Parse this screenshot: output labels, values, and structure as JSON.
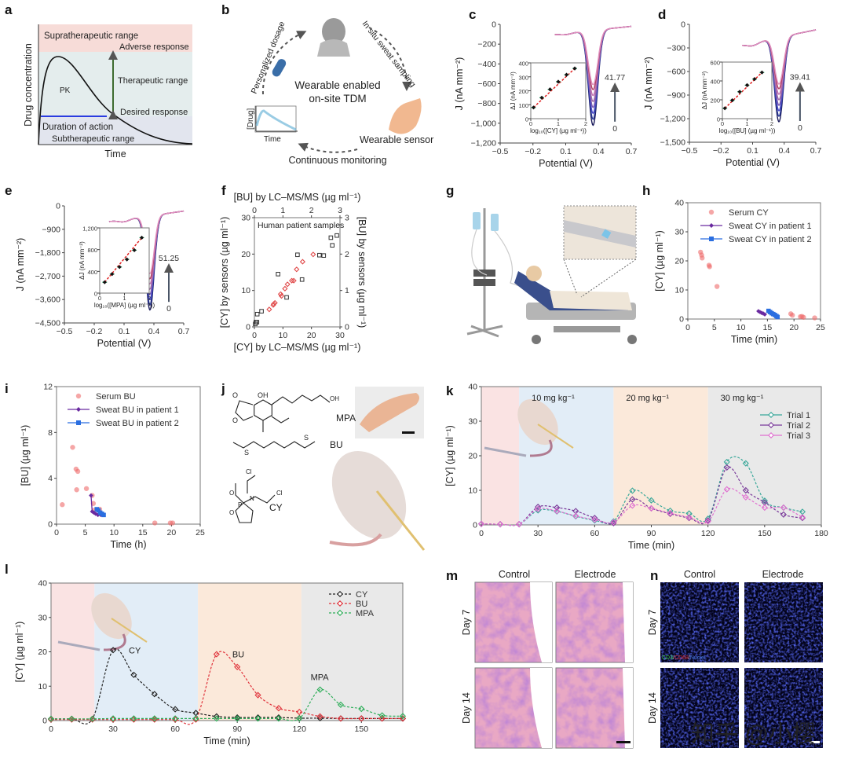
{
  "panel_letters": {
    "a": "a",
    "b": "b",
    "c": "c",
    "d": "d",
    "e": "e",
    "f": "f",
    "g": "g",
    "h": "h",
    "i": "i",
    "j": "j",
    "k": "k",
    "l": "l",
    "m": "m",
    "n": "n"
  },
  "colors": {
    "red": "#e0434b",
    "green": "#4f8a3c",
    "blue": "#2a3ce0",
    "brown": "#b0704f",
    "teal": "#3aa89a",
    "purple": "#7a3a9a",
    "pink": "#e070d0",
    "black": "#222222",
    "mpa": "#2fae5a"
  },
  "panel_a": {
    "supra": "Supratherapeutic range",
    "adverse": "Adverse response",
    "therapeutic": "Therapeutic range",
    "desired": "Desired response",
    "pk": "PK",
    "duration": "Duration of action",
    "sub": "Subtherapeutic range",
    "ylabel": "Drug concentration",
    "xlabel": "Time"
  },
  "panel_b": {
    "center1": "Wearable enabled",
    "center2": "on-site TDM",
    "left": "Personalized dosage",
    "right": "In situ sweat sampling",
    "sensor": "Wearable sensor",
    "bottom": "Continuous monitoring",
    "mini_y": "[Drug]",
    "mini_x": "Time"
  },
  "panel_g": {
    "scene": "patient-bed-iv-illustration"
  },
  "panel_j": {
    "mpa": "MPA",
    "bu": "BU",
    "cy": "CY",
    "atoms": {
      "oh1": "OH",
      "oh2": "OH",
      "o1": "O",
      "o2": "O",
      "o3": "O",
      "o4": "O",
      "s1": "S",
      "s2": "S",
      "cl1": "Cl",
      "cl2": "Cl",
      "n": "N",
      "p": "P",
      "o5": "O",
      "o6": "O"
    }
  },
  "panel_m": {
    "col1": "Control",
    "col2": "Electrode",
    "row1": "Day 7",
    "row2": "Day 14"
  },
  "panel_n": {
    "col1": "Control",
    "col2": "Electrode",
    "row1": "Day 7",
    "row2": "Day 14",
    "stain_cd3": "CD3",
    "stain_sep1": "/",
    "stain_cd68": "CD68",
    "stain_sep2": "/",
    "stain_nuclei": "Nuclei"
  },
  "watermark": "知乎 @小樱",
  "chart_data": [
    {
      "id": "c",
      "type": "line",
      "xlabel": "Potential (V)",
      "ylabel": "J (nA mm⁻²)",
      "xlim": [
        -0.5,
        0.7
      ],
      "ylim": [
        -1200,
        0
      ],
      "xticks": [
        "−0.5",
        "−0.2",
        "0.1",
        "0.4",
        "0.7"
      ],
      "yticks": [
        "0",
        "−200",
        "−400",
        "−600",
        "−800",
        "−1,000",
        "−1,200"
      ],
      "curve_start": [
        0.0,
        -100
      ],
      "curve_end": [
        0.7,
        -20
      ],
      "peak_potential": 0.35,
      "peaks": [
        -1020,
        -960,
        -900,
        -840,
        -780,
        -720,
        -660,
        -610
      ],
      "annotation_top": "41.77",
      "annotation_bottom": "0",
      "inset": {
        "xlabel": "log₁₀([CY] (µg ml⁻¹))",
        "ylabel": "ΔJ (nA mm⁻²)",
        "xlim": [
          0,
          2
        ],
        "ylim": [
          0,
          400
        ],
        "xticks": [
          "0",
          "1",
          "2"
        ],
        "yticks": [
          "0",
          "100",
          "200",
          "300",
          "400"
        ],
        "x": [
          0.1,
          0.4,
          0.7,
          1.0,
          1.3,
          1.6
        ],
        "y": [
          80,
          150,
          210,
          265,
          315,
          360
        ]
      }
    },
    {
      "id": "d",
      "type": "line",
      "xlabel": "Potential (V)",
      "ylabel": "J (nA mm⁻²)",
      "xlim": [
        -0.5,
        0.7
      ],
      "ylim": [
        -1500,
        0
      ],
      "xticks": [
        "−0.5",
        "−0.2",
        "0.1",
        "0.4",
        "0.7"
      ],
      "yticks": [
        "0",
        "−300",
        "−600",
        "−900",
        "−1,200",
        "−1,500"
      ],
      "curve_start": [
        0.0,
        -260
      ],
      "curve_end": [
        0.7,
        -70
      ],
      "peak_potential": 0.35,
      "peaks": [
        -1240,
        -1170,
        -1100,
        -1030,
        -960,
        -890,
        -820,
        -760
      ],
      "annotation_top": "39.41",
      "annotation_bottom": "0",
      "inset": {
        "xlabel": "log₁₀([BU] (µg ml⁻¹))",
        "ylabel": "ΔJ (nA mm⁻²)",
        "xlim": [
          0,
          2
        ],
        "ylim": [
          0,
          600
        ],
        "xticks": [
          "0",
          "1",
          "2"
        ],
        "yticks": [
          "0",
          "200",
          "400",
          "600"
        ],
        "x": [
          0.1,
          0.4,
          0.7,
          1.0,
          1.3,
          1.6
        ],
        "y": [
          110,
          195,
          285,
          355,
          420,
          490
        ]
      }
    },
    {
      "id": "e",
      "type": "line",
      "xlabel": "Potential (V)",
      "ylabel": "J (nA mm⁻²)",
      "xlim": [
        -0.5,
        0.7
      ],
      "ylim": [
        -4500,
        0
      ],
      "xticks": [
        "−0.5",
        "−0.2",
        "0.1",
        "0.4",
        "0.7"
      ],
      "yticks": [
        "0",
        "−900",
        "−1,800",
        "−2,700",
        "−3,600",
        "−4,500"
      ],
      "curve_start": [
        -0.05,
        -600
      ],
      "curve_end": [
        0.7,
        -200
      ],
      "peak_potential": 0.36,
      "peaks": [
        -4000,
        -3800,
        -3600,
        -3400,
        -3200,
        -3000,
        -2800,
        -2600
      ],
      "annotation_top": "51.25",
      "annotation_bottom": "0",
      "inset": {
        "xlabel": "log₁₀([MPA] (µg ml⁻¹))",
        "ylabel": "ΔJ (nA mm⁻²)",
        "xlim": [
          0,
          2
        ],
        "ylim": [
          0,
          1200
        ],
        "xticks": [
          "0",
          "1",
          "2"
        ],
        "yticks": [
          "0",
          "400",
          "800",
          "1,200"
        ],
        "x": [
          0.2,
          0.5,
          0.8,
          1.1,
          1.4,
          1.7
        ],
        "y": [
          200,
          350,
          480,
          620,
          790,
          1020
        ]
      }
    },
    {
      "id": "f",
      "type": "scatter",
      "title": "Human patient samples",
      "xlabel": "[CY] by LC–MS/MS (µg ml⁻¹)",
      "ylabel": "[CY] by sensors (µg ml⁻¹)",
      "x2label": "[BU] by LC–MS/MS (µg ml⁻¹)",
      "y2label": "[BU] by sensors (µg ml⁻¹)",
      "xlim": [
        0,
        30
      ],
      "ylim": [
        0,
        30
      ],
      "x2lim": [
        0,
        3
      ],
      "y2lim": [
        0,
        3
      ],
      "xticks": [
        "0",
        "10",
        "20",
        "30"
      ],
      "yticks": [
        "0",
        "10",
        "20",
        "30"
      ],
      "x2ticks": [
        "0",
        "1",
        "2",
        "3"
      ],
      "y2ticks": [
        "0",
        "1",
        "2",
        "3"
      ],
      "cy_points": [
        [
          0.3,
          0.8
        ],
        [
          0.5,
          1.3
        ],
        [
          0.9,
          1.3
        ],
        [
          1.0,
          3.5
        ],
        [
          2.5,
          4.3
        ],
        [
          8.3,
          14.5
        ],
        [
          11.3,
          8.1
        ],
        [
          15.1,
          19.8
        ],
        [
          16.7,
          13.0
        ],
        [
          22.8,
          19.7
        ],
        [
          24.3,
          19.6
        ],
        [
          26.8,
          24.5
        ],
        [
          27.3,
          22.4
        ],
        [
          28.9,
          25.1
        ]
      ],
      "bu_points": [
        [
          0.52,
          0.48
        ],
        [
          0.66,
          0.6
        ],
        [
          0.68,
          0.63
        ],
        [
          0.72,
          0.66
        ],
        [
          0.92,
          0.9
        ],
        [
          0.95,
          0.85
        ],
        [
          1.07,
          1.05
        ],
        [
          1.16,
          1.17
        ],
        [
          1.31,
          1.27
        ],
        [
          1.38,
          1.27
        ],
        [
          1.48,
          1.58
        ],
        [
          1.69,
          1.79
        ],
        [
          2.06,
          1.99
        ]
      ]
    },
    {
      "id": "h",
      "type": "scatter",
      "xlabel": "Time (min)",
      "ylabel": "[CY] (µg ml⁻¹)",
      "xlim": [
        0,
        25
      ],
      "ylim": [
        0,
        40
      ],
      "xticks": [
        "0",
        "5",
        "10",
        "15",
        "20",
        "25"
      ],
      "yticks": [
        "0",
        "10",
        "20",
        "30",
        "40"
      ],
      "legend": "top-right",
      "series": [
        {
          "name": "Serum CY",
          "marker": "circle",
          "color": "#ee6b6b",
          "points": [
            [
              2.4,
              23
            ],
            [
              2.6,
              22
            ],
            [
              2.7,
              21
            ],
            [
              4.0,
              18.5
            ],
            [
              4.1,
              18
            ],
            [
              5.5,
              11.2
            ],
            [
              19.4,
              1.8
            ],
            [
              19.7,
              1.3
            ],
            [
              21.2,
              0.8
            ],
            [
              21.5,
              0.9
            ],
            [
              21.8,
              0.6
            ],
            [
              23.9,
              0.4
            ]
          ]
        },
        {
          "name": "Sweat CY in patient 1",
          "marker": "diamond",
          "color": "#6a2aa0",
          "line": true,
          "points": [
            [
              13.3,
              2.7
            ],
            [
              13.6,
              2.4
            ],
            [
              13.9,
              2.1
            ],
            [
              14.2,
              1.9
            ],
            [
              14.5,
              1.6
            ]
          ]
        },
        {
          "name": "Sweat CY in patient 2",
          "marker": "square",
          "color": "#2a6ee0",
          "line": true,
          "points": [
            [
              15.2,
              2.8
            ],
            [
              15.5,
              2.4
            ],
            [
              15.8,
              2.0
            ],
            [
              16.1,
              1.7
            ],
            [
              16.4,
              1.4
            ],
            [
              16.7,
              1.0
            ],
            [
              16.9,
              0.7
            ]
          ]
        }
      ]
    },
    {
      "id": "i",
      "type": "scatter",
      "xlabel": "Time (h)",
      "ylabel": "[BU] (µg ml⁻¹)",
      "xlim": [
        0,
        25
      ],
      "ylim": [
        0,
        12
      ],
      "xticks": [
        "0",
        "5",
        "10",
        "15",
        "20",
        "25"
      ],
      "yticks": [
        "0",
        "4",
        "8",
        "12"
      ],
      "legend": "top-right",
      "series": [
        {
          "name": "Serum BU",
          "marker": "circle",
          "color": "#ee6b6b",
          "points": [
            [
              1.0,
              1.7
            ],
            [
              2.8,
              6.7
            ],
            [
              3.4,
              4.8
            ],
            [
              3.7,
              4.6
            ],
            [
              3.5,
              3.0
            ],
            [
              5.2,
              3.1
            ],
            [
              6.2,
              2.5
            ],
            [
              6.4,
              1.8
            ],
            [
              6.5,
              1.2
            ],
            [
              7.5,
              1.3
            ],
            [
              17.1,
              0.1
            ],
            [
              19.8,
              0.1
            ],
            [
              20.2,
              0.1
            ]
          ]
        },
        {
          "name": "Sweat BU in patient 1",
          "marker": "diamond",
          "color": "#6a2aa0",
          "line": true,
          "points": [
            [
              6.0,
              2.5
            ],
            [
              6.2,
              1.1
            ],
            [
              6.5,
              1.0
            ],
            [
              6.8,
              0.9
            ],
            [
              7.2,
              0.8
            ],
            [
              7.7,
              0.8
            ]
          ]
        },
        {
          "name": "Sweat BU in patient 2",
          "marker": "square",
          "color": "#2a6ee0",
          "line": true,
          "points": [
            [
              7.0,
              1.3
            ],
            [
              7.3,
              1.2
            ],
            [
              7.6,
              1.0
            ],
            [
              7.9,
              0.9
            ],
            [
              8.2,
              0.8
            ]
          ]
        }
      ]
    },
    {
      "id": "k",
      "type": "line",
      "xlabel": "Time (min)",
      "ylabel": "[CY] (µg ml⁻¹)",
      "xlim": [
        0,
        180
      ],
      "ylim": [
        0,
        40
      ],
      "xticks": [
        "0",
        "30",
        "60",
        "90",
        "120",
        "150",
        "180"
      ],
      "yticks": [
        "0",
        "10",
        "20",
        "30",
        "40"
      ],
      "legend": "top-right",
      "bands": [
        {
          "from": 0,
          "to": 20,
          "color": "#fae3e3",
          "label": ""
        },
        {
          "from": 20,
          "to": 70,
          "color": "#e2edf7",
          "label": "10 mg kg⁻¹"
        },
        {
          "from": 70,
          "to": 120,
          "color": "#fbe9da",
          "label": "20 mg kg⁻¹"
        },
        {
          "from": 120,
          "to": 180,
          "color": "#e9e9e9",
          "label": "30 mg kg⁻¹"
        }
      ],
      "x": [
        0,
        10,
        20,
        30,
        40,
        50,
        60,
        70,
        80,
        90,
        100,
        110,
        120,
        130,
        140,
        150,
        160,
        170
      ],
      "series": [
        {
          "name": "Trial 1",
          "color": "#3aa89a",
          "values": [
            0.3,
            0.2,
            0.2,
            4.2,
            3.9,
            2.5,
            1.3,
            1.0,
            9.9,
            7.1,
            4.1,
            3.3,
            1.8,
            18.2,
            17.8,
            7.0,
            5.0,
            3.8
          ]
        },
        {
          "name": "Trial 2",
          "color": "#7a3a9a",
          "values": [
            0.3,
            0.2,
            0.2,
            5.2,
            5.0,
            4.0,
            2.0,
            0.5,
            7.4,
            4.8,
            3.2,
            2.0,
            1.3,
            16.6,
            10.0,
            6.5,
            3.0,
            2.0
          ]
        },
        {
          "name": "Trial 3",
          "color": "#e070d0",
          "values": [
            0.3,
            0.2,
            0.2,
            4.6,
            4.0,
            2.6,
            1.5,
            0.8,
            5.6,
            4.8,
            3.4,
            2.2,
            1.0,
            10.3,
            8.0,
            5.0,
            5.0,
            2.2
          ]
        }
      ]
    },
    {
      "id": "l",
      "type": "line",
      "xlabel": "Time (min)",
      "ylabel": "[CY] (µg ml⁻¹)",
      "xlim": [
        0,
        170
      ],
      "ylim": [
        0,
        40
      ],
      "xticks": [
        "0",
        "30",
        "60",
        "90",
        "120",
        "150"
      ],
      "yticks": [
        "0",
        "10",
        "20",
        "30",
        "40"
      ],
      "legend": "top-right",
      "bands": [
        {
          "from": 0,
          "to": 21,
          "color": "#fae3e3",
          "label": ""
        },
        {
          "from": 21,
          "to": 71,
          "color": "#e2edf7",
          "label": ""
        },
        {
          "from": 71,
          "to": 121,
          "color": "#fbe9da",
          "label": ""
        },
        {
          "from": 121,
          "to": 170,
          "color": "#e9e9e9",
          "label": ""
        }
      ],
      "x": [
        0,
        10,
        20,
        30,
        40,
        50,
        60,
        70,
        80,
        90,
        100,
        110,
        120,
        130,
        140,
        150,
        160,
        170
      ],
      "series": [
        {
          "name": "CY",
          "color": "#222222",
          "annotation": "CY",
          "values": [
            0.5,
            0.5,
            0.5,
            20.5,
            13.3,
            7.7,
            3.3,
            2.2,
            1.2,
            0.9,
            0.9,
            0.9,
            0.7,
            0.7,
            0.6,
            0.6,
            0.6,
            0.6
          ]
        },
        {
          "name": "BU",
          "color": "#e0343c",
          "annotation": "BU",
          "values": [
            0.3,
            0.3,
            0.3,
            0.3,
            0.3,
            0.3,
            0.3,
            0.3,
            19.3,
            15.6,
            7.4,
            3.6,
            2.5,
            1.2,
            0.6,
            0.6,
            0.6,
            0.6
          ]
        },
        {
          "name": "MPA",
          "color": "#2fae5a",
          "annotation": "MPA",
          "values": [
            0.5,
            0.5,
            0.5,
            0.6,
            0.6,
            0.6,
            0.6,
            0.6,
            0.6,
            0.6,
            0.6,
            0.6,
            0.6,
            9.0,
            4.6,
            3.4,
            1.5,
            1.3
          ]
        }
      ]
    }
  ]
}
